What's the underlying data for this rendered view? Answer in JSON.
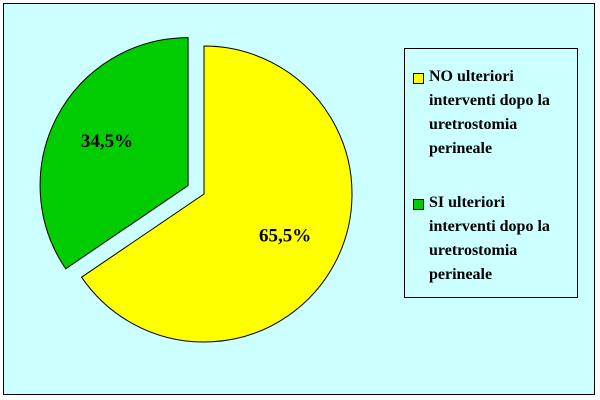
{
  "chart_data": {
    "type": "pie",
    "slices": [
      {
        "label": "NO ulteriori interventi dopo la uretrostomia perineale",
        "value": 65.5,
        "display": "65,5%",
        "color": "#ffff00"
      },
      {
        "label": "SI ulteriori interventi dopo la uretrostomia perineale",
        "value": 34.5,
        "display": "34,5%",
        "color": "#00cc00"
      }
    ],
    "legend_position": "right",
    "exploded_slice": "SI ulteriori interventi dopo la uretrostomia perineale",
    "background_color": "#ccffff"
  }
}
